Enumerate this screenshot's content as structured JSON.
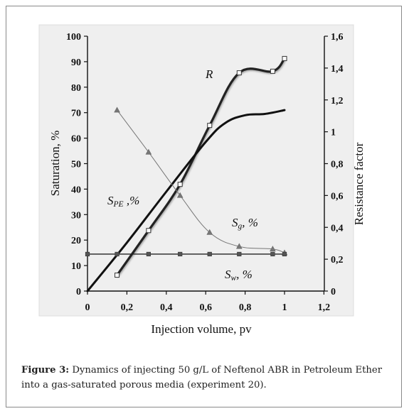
{
  "chart_data": {
    "type": "line",
    "xlabel": "Injection volume, pv",
    "ylabel_left": "Saturation, %",
    "ylabel_right": "Resistance factor",
    "xlim": [
      0,
      1.2
    ],
    "ylim_left": [
      0,
      100
    ],
    "ylim_right": [
      0,
      1.6
    ],
    "x_ticks": [
      "0",
      "0,2",
      "0,4",
      "0,6",
      "0,8",
      "1",
      "1,2"
    ],
    "y_left_ticks": [
      "0",
      "10",
      "20",
      "30",
      "40",
      "50",
      "60",
      "70",
      "80",
      "90",
      "100"
    ],
    "y_right_ticks": [
      "0",
      "0,2",
      "0,4",
      "0,6",
      "0,8",
      "1",
      "1,2",
      "1,4",
      "1,6"
    ],
    "grid": false,
    "series": [
      {
        "name": "R",
        "axis": "right",
        "color": "#222222",
        "marker": "square-open",
        "smooth": true,
        "x": [
          0.15,
          0.31,
          0.47,
          0.62,
          0.77,
          0.94,
          1.0
        ],
        "y": [
          0.1,
          0.38,
          0.67,
          1.04,
          1.37,
          1.38,
          1.46
        ],
        "markers": [
          [
            0.15,
            0.1
          ],
          [
            0.31,
            0.38
          ],
          [
            0.47,
            0.67
          ],
          [
            0.62,
            1.04
          ],
          [
            0.77,
            1.37
          ],
          [
            0.94,
            1.38
          ],
          [
            1.0,
            1.46
          ]
        ]
      },
      {
        "name": "S_PE ,%",
        "axis": "left",
        "color": "#111111",
        "marker": "none",
        "smooth": true,
        "x": [
          0,
          0.2,
          0.4,
          0.6,
          0.7,
          0.8,
          0.9,
          1.0
        ],
        "y": [
          0,
          19,
          39,
          58.5,
          66,
          69,
          69.5,
          71
        ]
      },
      {
        "name": "S_g, %",
        "axis": "left",
        "color": "#777777",
        "marker": "triangle",
        "smooth": true,
        "x": [
          0.15,
          0.31,
          0.47,
          0.62,
          0.77,
          0.94,
          1.0
        ],
        "y": [
          71,
          54.5,
          37.5,
          23,
          17.5,
          16.5,
          15
        ],
        "markers": [
          [
            0.15,
            71
          ],
          [
            0.31,
            54.5
          ],
          [
            0.47,
            37.5
          ],
          [
            0.62,
            23
          ],
          [
            0.77,
            17.5
          ],
          [
            0.94,
            16.5
          ],
          [
            1.0,
            15
          ]
        ]
      },
      {
        "name": "S_w, %",
        "axis": "left",
        "color": "#222222",
        "marker": "square-filled",
        "smooth": false,
        "x": [
          0,
          0.15,
          0.31,
          0.47,
          0.62,
          0.77,
          0.94,
          1.0
        ],
        "y": [
          14.5,
          14.5,
          14.5,
          14.5,
          14.5,
          14.5,
          14.5,
          14.5
        ],
        "markers": [
          [
            0,
            14.5
          ],
          [
            0.15,
            14.5
          ],
          [
            0.31,
            14.5
          ],
          [
            0.47,
            14.5
          ],
          [
            0.62,
            14.5
          ],
          [
            0.77,
            14.5
          ],
          [
            0.94,
            14.5
          ],
          [
            1.0,
            14.5
          ]
        ]
      }
    ],
    "annotations": {
      "r": "R",
      "spe_main": "S",
      "spe_sub": "PE",
      "spe_tail": " ,%",
      "sg_main": "S",
      "sg_sub": "g",
      "sg_tail": ", %",
      "sw_main": "S",
      "sw_sub": "w",
      "sw_tail": ", %"
    }
  },
  "caption": {
    "label": "Figure 3:",
    "text": " Dynamics of injecting 50 g/L of Neftenol ABR in Petroleum Ether into a gas-saturated porous media (experiment 20)."
  }
}
